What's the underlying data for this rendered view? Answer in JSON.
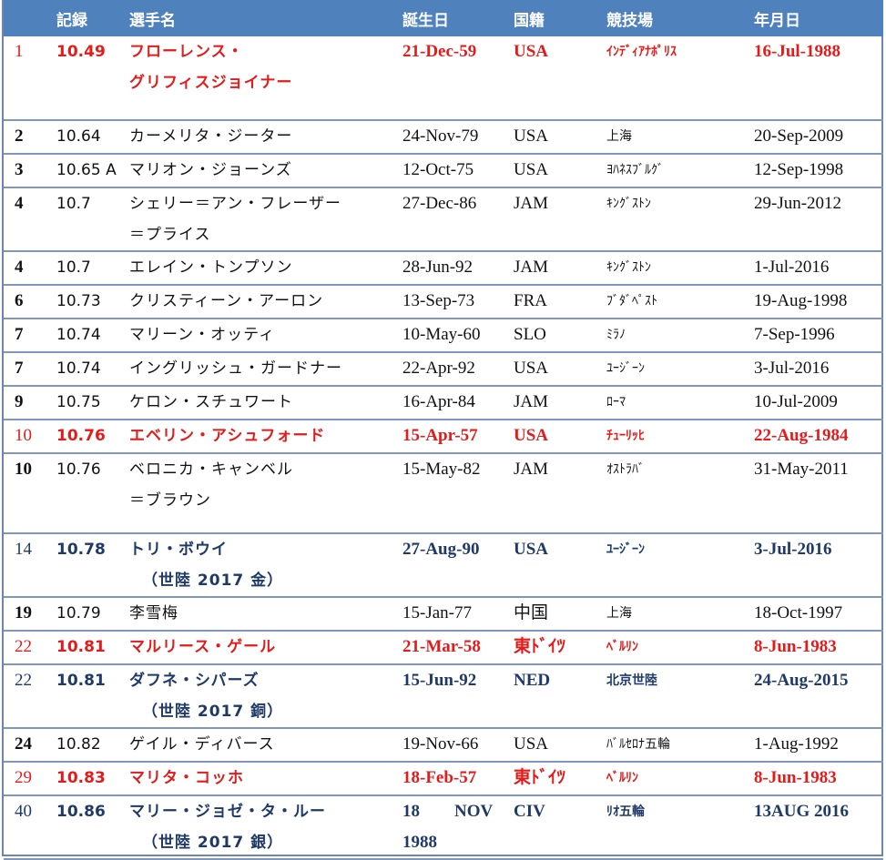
{
  "headers": [
    "",
    "記録",
    "選手名",
    "誕生日",
    "国籍",
    "競技場",
    "年月日"
  ],
  "rows": [
    {
      "style": "red",
      "rank": "1",
      "record": "10.49",
      "name": "フローレンス・",
      "name2": "グリフィスジョイナー",
      "birth": "21-Dec-59",
      "nat": "USA",
      "venue": "ｲﾝﾃﾞｨｱﾅﾎﾟﾘｽ",
      "date": "16-Jul-1988"
    },
    {
      "style": "plain",
      "rank": "2",
      "record": "10.64",
      "name": "カーメリタ・ジーター",
      "name2": "",
      "birth": "24-Nov-79",
      "nat": "USA",
      "venue": "上海",
      "date": "20-Sep-2009"
    },
    {
      "style": "plain",
      "rank": "3",
      "record": "10.65 A",
      "name": "マリオン・ジョーンズ",
      "name2": "",
      "birth": "12-Oct-75",
      "nat": "USA",
      "venue": "ﾖﾊﾈｽﾌﾞﾙｸﾞ",
      "date": "12-Sep-1998"
    },
    {
      "style": "plain",
      "rank": "4",
      "record": "10.7",
      "name": "シェリー＝アン・フレーザー",
      "name2": "＝プライス",
      "birth": "27-Dec-86",
      "nat": "JAM",
      "venue": "ｷﾝｸﾞｽﾄﾝ",
      "date": "29-Jun-2012"
    },
    {
      "style": "plain",
      "rank": "4",
      "record": "10.7",
      "name": "エレイン・トンプソン",
      "name2": "",
      "birth": "28-Jun-92",
      "nat": "JAM",
      "venue": "ｷﾝｸﾞｽﾄﾝ",
      "date": "1-Jul-2016"
    },
    {
      "style": "plain",
      "rank": "6",
      "record": "10.73",
      "name": "クリスティーン・アーロン",
      "name2": "",
      "birth": "13-Sep-73",
      "nat": "FRA",
      "venue": "ﾌﾞﾀﾞﾍﾟｽﾄ",
      "date": "19-Aug-1998"
    },
    {
      "style": "plain",
      "rank": "7",
      "record": "10.74",
      "name": "マリーン・オッティ",
      "name2": "",
      "birth": "10-May-60",
      "nat": "SLO",
      "venue": "ﾐﾗﾉ",
      "date": "7-Sep-1996"
    },
    {
      "style": "plain",
      "rank": "7",
      "record": "10.74",
      "name": "イングリッシュ・ガードナー",
      "name2": "",
      "birth": "22-Apr-92",
      "nat": "USA",
      "venue": "ﾕｰｼﾞｰﾝ",
      "date": "3-Jul-2016"
    },
    {
      "style": "plain",
      "rank": "9",
      "record": "10.75",
      "name": "ケロン・スチュワート",
      "name2": "",
      "birth": "16-Apr-84",
      "nat": "JAM",
      "venue": "ﾛｰﾏ",
      "date": "10-Jul-2009"
    },
    {
      "style": "red",
      "rank": "10",
      "record": "10.76",
      "name": "エベリン・アシュフォード",
      "name2": "",
      "birth": "15-Apr-57",
      "nat": "USA",
      "venue": "ﾁｭｰﾘｯﾋ",
      "date": "22-Aug-1984"
    },
    {
      "style": "plain",
      "rank": "10",
      "record": "10.76",
      "name": "ベロニカ・キャンベル",
      "name2": "＝ブラウン",
      "birth": "15-May-82",
      "nat": "JAM",
      "venue": "ｵｽﾄﾗﾊﾞ",
      "date": "31-May-2011"
    },
    {
      "style": "blue",
      "rank": "14",
      "record": "10.78",
      "name": "トリ・ボウイ",
      "name2": "（世陸 2017 金）",
      "birth": "27-Aug-90",
      "nat": "USA",
      "venue": "ﾕｰｼﾞｰﾝ",
      "date": "3-Jul-2016"
    },
    {
      "style": "plain",
      "rank": "19",
      "record": "10.79",
      "name": "李雪梅",
      "name2": "",
      "birth": "15-Jan-77",
      "nat": "中国",
      "venue": "上海",
      "date": "18-Oct-1997"
    },
    {
      "style": "red",
      "rank": "22",
      "record": "10.81",
      "name": "マルリース・ゲール",
      "name2": "",
      "birth": "21-Mar-58",
      "nat": "東ﾄﾞｲﾂ",
      "venue": "ﾍﾞﾙﾘﾝ",
      "date": "8-Jun-1983"
    },
    {
      "style": "blue",
      "rank": "22",
      "record": "10.81",
      "name": "ダフネ・シパーズ",
      "name2": "（世陸 2017 銅）",
      "birth": "15-Jun-92",
      "nat": "NED",
      "venue": "北京世陸",
      "date": "24-Aug-2015"
    },
    {
      "style": "plain",
      "rank": "24",
      "record": "10.82",
      "name": "ゲイル・ディバース",
      "name2": "",
      "birth": "19-Nov-66",
      "nat": "USA",
      "venue": "ﾊﾞﾙｾﾛﾅ五輪",
      "date": "1-Aug-1992"
    },
    {
      "style": "red",
      "rank": "29",
      "record": "10.83",
      "name": "マリタ・コッホ",
      "name2": "",
      "birth": "18-Feb-57",
      "nat": "東ﾄﾞｲﾂ",
      "venue": "ﾍﾞﾙﾘﾝ",
      "date": "8-Jun-1983"
    },
    {
      "style": "blue",
      "rank": "40",
      "record": "10.86",
      "name": "マリー・ジョゼ・タ・ルー",
      "name2": "（世陸 2017 銀）",
      "birth": "18　　NOV",
      "birth2": "1988",
      "nat": "CIV",
      "venue": "ﾘｵ五輪",
      "date": "13AUG 2016"
    }
  ]
}
